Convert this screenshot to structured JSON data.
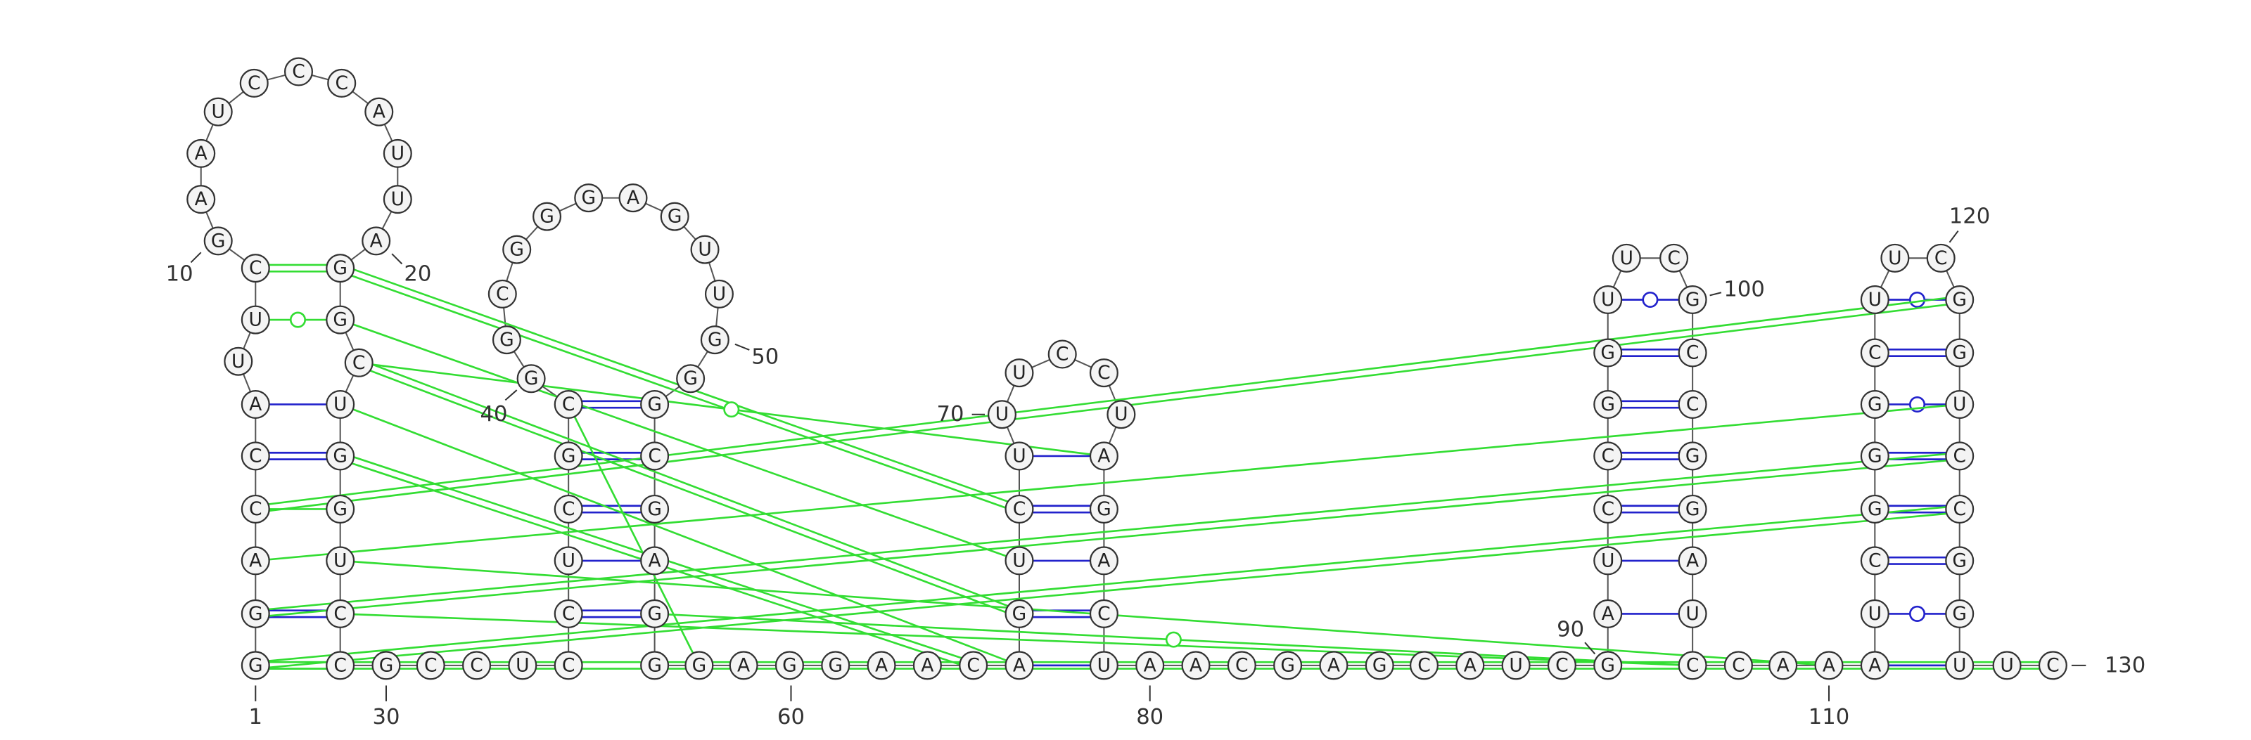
{
  "sequence": [
    "G",
    "G",
    "A",
    "C",
    "C",
    "A",
    "U",
    "U",
    "C",
    "G",
    "A",
    "A",
    "U",
    "C",
    "C",
    "C",
    "A",
    "U",
    "U",
    "A",
    "G",
    "G",
    "C",
    "U",
    "G",
    "G",
    "U",
    "C",
    "C",
    "G",
    "C",
    "C",
    "U",
    "C",
    "C",
    "U",
    "C",
    "G",
    "C",
    "G",
    "G",
    "C",
    "G",
    "G",
    "G",
    "A",
    "G",
    "U",
    "U",
    "G",
    "G",
    "G",
    "C",
    "G",
    "A",
    "G",
    "G",
    "G",
    "A",
    "G",
    "G",
    "A",
    "A",
    "C",
    "A",
    "G",
    "U",
    "C",
    "U",
    "U",
    "U",
    "C",
    "C",
    "U",
    "A",
    "G",
    "A",
    "C",
    "U",
    "A",
    "A",
    "C",
    "G",
    "A",
    "G",
    "C",
    "A",
    "U",
    "C",
    "G",
    "A",
    "U",
    "C",
    "C",
    "G",
    "G",
    "U",
    "U",
    "C",
    "G",
    "C",
    "C",
    "G",
    "G",
    "A",
    "U",
    "C",
    "C",
    "A",
    "A",
    "A",
    "U",
    "C",
    "G",
    "G",
    "G",
    "C",
    "U",
    "U",
    "C",
    "G",
    "G",
    "U",
    "C",
    "C",
    "G",
    "G",
    "U",
    "U",
    "C"
  ],
  "position_labels": [
    "1",
    "10",
    "20",
    "30",
    "40",
    "50",
    "60",
    "70",
    "80",
    "90",
    "100",
    "110",
    "120",
    "130"
  ]
}
